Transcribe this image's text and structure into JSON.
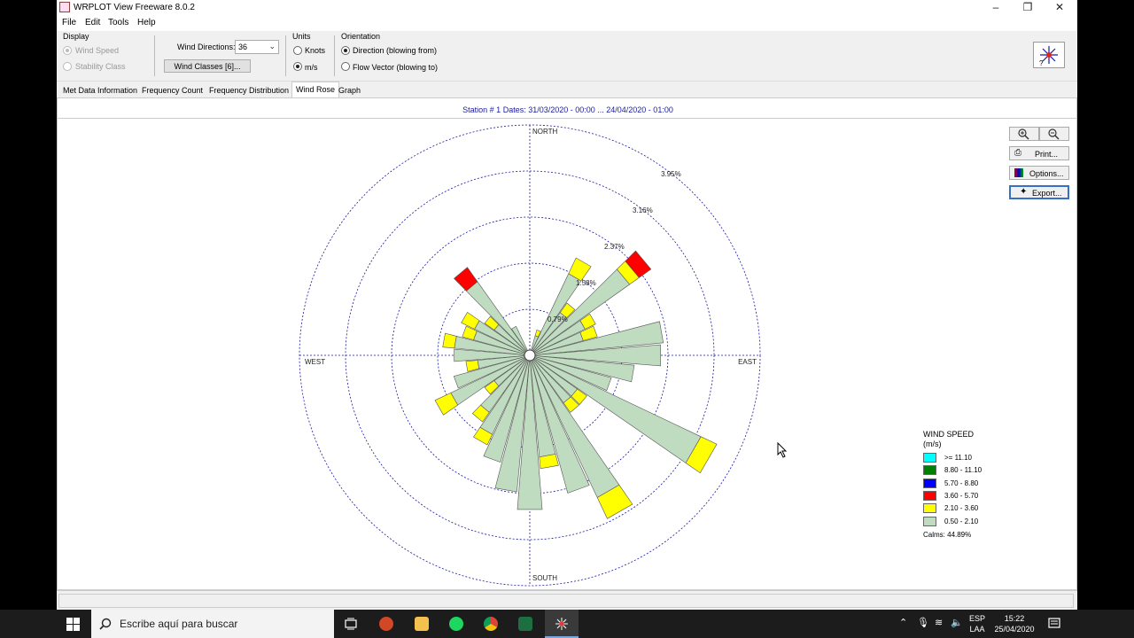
{
  "window": {
    "title": "WRPLOT View Freeware 8.0.2"
  },
  "menu": [
    "File",
    "Edit",
    "Tools",
    "Help"
  ],
  "toolbar": {
    "display_label": "Display",
    "display_options": [
      "Wind Speed",
      "Stability Class"
    ],
    "wind_directions_label": "Wind Directions:",
    "wind_directions_value": "36",
    "wind_classes_button": "Wind Classes [6]...",
    "units_label": "Units",
    "units_options": [
      "Knots",
      "m/s"
    ],
    "units_selected": "m/s",
    "orientation_label": "Orientation",
    "orientation_options": [
      "Direction (blowing from)",
      "Flow Vector (blowing to)"
    ],
    "orientation_selected": "Direction (blowing from)"
  },
  "tabs": [
    "Met Data Information",
    "Frequency Count",
    "Frequency Distribution",
    "Wind Rose",
    "Graph"
  ],
  "active_tab": "Wind Rose",
  "station_line": "Station #    1  Dates: 31/03/2020 - 00:00 ... 24/04/2020 - 01:00",
  "rose_buttons": {
    "zoom_in": "zoom-in-icon",
    "zoom_out": "zoom-out-icon",
    "print": "Print...",
    "options": "Options...",
    "export": "Export..."
  },
  "chart_data": {
    "type": "wind_rose",
    "directions_count": 36,
    "orientation": "Direction (blowing from)",
    "compass_labels": [
      "NORTH",
      "EAST",
      "SOUTH",
      "WEST"
    ],
    "ring_labels": [
      "0.79%",
      "1.58%",
      "2.37%",
      "3.16%",
      "3.95%"
    ],
    "ring_values": [
      0.79,
      1.58,
      2.37,
      3.16,
      3.95
    ],
    "speed_classes": [
      {
        "label": ">= 11.10",
        "color": "#00ffff"
      },
      {
        "label": "8.80 - 11.10",
        "color": "#008000"
      },
      {
        "label": "5.70 - 8.80",
        "color": "#0000ff"
      },
      {
        "label": "3.60 - 5.70",
        "color": "#ff0000"
      },
      {
        "label": "2.10 - 3.60",
        "color": "#ffff00"
      },
      {
        "label": "0.50 - 2.10",
        "color": "#c0dcc0"
      }
    ],
    "bars": [
      {
        "dir": 0,
        "seg": [
          0.0,
          0.0,
          0.0,
          0.0,
          0.0,
          0.0
        ]
      },
      {
        "dir": 10,
        "seg": [
          0.0,
          0.0,
          0.0,
          0.0,
          0.0,
          0.0
        ]
      },
      {
        "dir": 20,
        "seg": [
          0.0,
          0.0,
          0.0,
          0.0,
          0.1,
          0.35
        ]
      },
      {
        "dir": 30,
        "seg": [
          0.0,
          0.0,
          0.0,
          0.0,
          0.3,
          1.55
        ]
      },
      {
        "dir": 40,
        "seg": [
          0.0,
          0.0,
          0.0,
          0.0,
          0.2,
          0.9
        ]
      },
      {
        "dir": 50,
        "seg": [
          0.0,
          0.0,
          0.0,
          0.25,
          0.2,
          2.1
        ]
      },
      {
        "dir": 60,
        "seg": [
          0.0,
          0.0,
          0.0,
          0.0,
          0.2,
          1.05
        ]
      },
      {
        "dir": 70,
        "seg": [
          0.0,
          0.0,
          0.0,
          0.0,
          0.25,
          0.95
        ]
      },
      {
        "dir": 80,
        "seg": [
          0.0,
          0.0,
          0.0,
          0.0,
          0.0,
          2.3
        ]
      },
      {
        "dir": 90,
        "seg": [
          0.0,
          0.0,
          0.0,
          0.0,
          0.0,
          2.25
        ]
      },
      {
        "dir": 100,
        "seg": [
          0.0,
          0.0,
          0.0,
          0.0,
          0.0,
          1.8
        ]
      },
      {
        "dir": 110,
        "seg": [
          0.0,
          0.0,
          0.0,
          0.0,
          0.0,
          1.45
        ]
      },
      {
        "dir": 120,
        "seg": [
          0.0,
          0.0,
          0.0,
          0.0,
          0.3,
          3.25
        ]
      },
      {
        "dir": 130,
        "seg": [
          0.0,
          0.0,
          0.0,
          0.0,
          0.2,
          1.0
        ]
      },
      {
        "dir": 140,
        "seg": [
          0.0,
          0.0,
          0.0,
          0.0,
          0.2,
          1.0
        ]
      },
      {
        "dir": 150,
        "seg": [
          0.0,
          0.0,
          0.0,
          0.0,
          0.4,
          2.7
        ]
      },
      {
        "dir": 160,
        "seg": [
          0.0,
          0.0,
          0.0,
          0.0,
          0.0,
          2.45
        ]
      },
      {
        "dir": 170,
        "seg": [
          0.0,
          0.0,
          0.0,
          0.0,
          0.2,
          1.75
        ]
      },
      {
        "dir": 180,
        "seg": [
          0.0,
          0.0,
          0.0,
          0.0,
          0.0,
          2.65
        ]
      },
      {
        "dir": 190,
        "seg": [
          0.0,
          0.0,
          0.0,
          0.0,
          0.0,
          2.35
        ]
      },
      {
        "dir": 200,
        "seg": [
          0.0,
          0.0,
          0.0,
          0.0,
          0.0,
          1.9
        ]
      },
      {
        "dir": 210,
        "seg": [
          0.0,
          0.0,
          0.0,
          0.0,
          0.2,
          1.5
        ]
      },
      {
        "dir": 220,
        "seg": [
          0.0,
          0.0,
          0.0,
          0.0,
          0.2,
          1.2
        ]
      },
      {
        "dir": 230,
        "seg": [
          0.0,
          0.0,
          0.0,
          0.0,
          0.2,
          0.75
        ]
      },
      {
        "dir": 240,
        "seg": [
          0.0,
          0.0,
          0.0,
          0.0,
          0.3,
          1.5
        ]
      },
      {
        "dir": 250,
        "seg": [
          0.0,
          0.0,
          0.0,
          0.0,
          0.0,
          1.35
        ]
      },
      {
        "dir": 260,
        "seg": [
          0.0,
          0.0,
          0.0,
          0.0,
          0.2,
          0.9
        ]
      },
      {
        "dir": 270,
        "seg": [
          0.0,
          0.0,
          0.0,
          0.0,
          0.0,
          1.3
        ]
      },
      {
        "dir": 280,
        "seg": [
          0.0,
          0.0,
          0.0,
          0.0,
          0.2,
          1.3
        ]
      },
      {
        "dir": 290,
        "seg": [
          0.0,
          0.0,
          0.0,
          0.0,
          0.2,
          1.0
        ]
      },
      {
        "dir": 300,
        "seg": [
          0.0,
          0.0,
          0.0,
          0.0,
          0.25,
          1.05
        ]
      },
      {
        "dir": 310,
        "seg": [
          0.0,
          0.0,
          0.0,
          0.0,
          0.2,
          0.75
        ]
      },
      {
        "dir": 320,
        "seg": [
          0.0,
          0.0,
          0.0,
          0.3,
          0.0,
          1.55
        ]
      },
      {
        "dir": 330,
        "seg": [
          0.0,
          0.0,
          0.0,
          0.0,
          0.0,
          0.55
        ]
      },
      {
        "dir": 340,
        "seg": [
          0.0,
          0.0,
          0.0,
          0.0,
          0.0,
          0.0
        ]
      },
      {
        "dir": 350,
        "seg": [
          0.0,
          0.0,
          0.0,
          0.0,
          0.0,
          0.0
        ]
      }
    ]
  },
  "legend": {
    "title": "WIND SPEED",
    "units": "(m/s)",
    "calms": "Calms: 44.89%"
  },
  "taskbar": {
    "search_placeholder": "Escribe aquí para buscar",
    "lang_top": "ESP",
    "lang_bottom": "LAA",
    "time": "15:22",
    "date": "25/04/2020"
  }
}
